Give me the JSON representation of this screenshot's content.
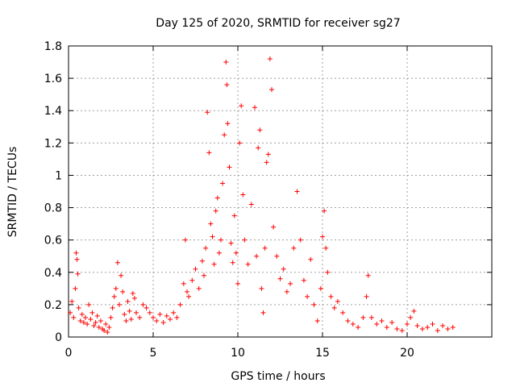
{
  "chart_data": {
    "type": "scatter",
    "title": "Day 125 of 2020, SRMTID for receiver sg27",
    "xlabel": "GPS time / hours",
    "ylabel": "SRMTID / TECUs",
    "xlim": [
      0,
      25
    ],
    "ylim": [
      0,
      1.8
    ],
    "xticks": [
      0,
      5,
      10,
      15,
      20
    ],
    "yticks": [
      0,
      0.2,
      0.4,
      0.6,
      0.8,
      1,
      1.2,
      1.4,
      1.6,
      1.8
    ],
    "xtick_labels": [
      "0",
      "5",
      "10",
      "15",
      "20"
    ],
    "ytick_labels": [
      "0",
      "0.2",
      "0.4",
      "0.6",
      "0.8",
      "1",
      "1.2",
      "1.4",
      "1.6",
      "1.8"
    ],
    "grid": true,
    "marker": "+",
    "marker_color": "#ff0000",
    "series": [
      {
        "name": "SRMTID",
        "points": [
          [
            0.1,
            0.15
          ],
          [
            0.2,
            0.22
          ],
          [
            0.3,
            0.12
          ],
          [
            0.4,
            0.3
          ],
          [
            0.45,
            0.52
          ],
          [
            0.5,
            0.48
          ],
          [
            0.55,
            0.39
          ],
          [
            0.6,
            0.18
          ],
          [
            0.7,
            0.1
          ],
          [
            0.8,
            0.14
          ],
          [
            0.9,
            0.09
          ],
          [
            1.0,
            0.12
          ],
          [
            1.1,
            0.08
          ],
          [
            1.2,
            0.2
          ],
          [
            1.3,
            0.11
          ],
          [
            1.4,
            0.15
          ],
          [
            1.5,
            0.07
          ],
          [
            1.6,
            0.09
          ],
          [
            1.7,
            0.13
          ],
          [
            1.8,
            0.06
          ],
          [
            1.9,
            0.1
          ],
          [
            2.0,
            0.05
          ],
          [
            2.1,
            0.04
          ],
          [
            2.2,
            0.08
          ],
          [
            2.3,
            0.03
          ],
          [
            2.4,
            0.06
          ],
          [
            2.5,
            0.12
          ],
          [
            2.6,
            0.18
          ],
          [
            2.7,
            0.25
          ],
          [
            2.8,
            0.3
          ],
          [
            2.9,
            0.46
          ],
          [
            3.0,
            0.2
          ],
          [
            3.1,
            0.38
          ],
          [
            3.2,
            0.28
          ],
          [
            3.3,
            0.14
          ],
          [
            3.4,
            0.1
          ],
          [
            3.5,
            0.22
          ],
          [
            3.6,
            0.16
          ],
          [
            3.7,
            0.11
          ],
          [
            3.8,
            0.27
          ],
          [
            3.9,
            0.24
          ],
          [
            4.0,
            0.15
          ],
          [
            4.2,
            0.12
          ],
          [
            4.4,
            0.2
          ],
          [
            4.6,
            0.18
          ],
          [
            4.8,
            0.15
          ],
          [
            5.0,
            0.12
          ],
          [
            5.2,
            0.1
          ],
          [
            5.4,
            0.14
          ],
          [
            5.6,
            0.09
          ],
          [
            5.8,
            0.13
          ],
          [
            6.0,
            0.11
          ],
          [
            6.2,
            0.15
          ],
          [
            6.4,
            0.12
          ],
          [
            6.6,
            0.2
          ],
          [
            6.8,
            0.33
          ],
          [
            6.9,
            0.6
          ],
          [
            7.0,
            0.28
          ],
          [
            7.1,
            0.25
          ],
          [
            7.3,
            0.35
          ],
          [
            7.5,
            0.42
          ],
          [
            7.7,
            0.3
          ],
          [
            7.9,
            0.47
          ],
          [
            8.0,
            0.38
          ],
          [
            8.1,
            0.55
          ],
          [
            8.2,
            1.39
          ],
          [
            8.3,
            1.14
          ],
          [
            8.4,
            0.7
          ],
          [
            8.5,
            0.62
          ],
          [
            8.6,
            0.45
          ],
          [
            8.7,
            0.78
          ],
          [
            8.8,
            0.86
          ],
          [
            8.9,
            0.52
          ],
          [
            9.0,
            0.6
          ],
          [
            9.1,
            0.95
          ],
          [
            9.2,
            1.25
          ],
          [
            9.3,
            1.7
          ],
          [
            9.35,
            1.56
          ],
          [
            9.4,
            1.32
          ],
          [
            9.5,
            1.05
          ],
          [
            9.6,
            0.58
          ],
          [
            9.7,
            0.46
          ],
          [
            9.8,
            0.75
          ],
          [
            9.9,
            0.52
          ],
          [
            10.0,
            0.33
          ],
          [
            10.1,
            1.2
          ],
          [
            10.2,
            1.43
          ],
          [
            10.3,
            0.88
          ],
          [
            10.4,
            0.6
          ],
          [
            10.6,
            0.45
          ],
          [
            10.8,
            0.82
          ],
          [
            11.0,
            1.42
          ],
          [
            11.1,
            0.5
          ],
          [
            11.2,
            1.17
          ],
          [
            11.3,
            1.28
          ],
          [
            11.4,
            0.3
          ],
          [
            11.5,
            0.15
          ],
          [
            11.6,
            0.55
          ],
          [
            11.7,
            1.08
          ],
          [
            11.8,
            1.13
          ],
          [
            11.9,
            1.72
          ],
          [
            12.0,
            1.53
          ],
          [
            12.1,
            0.68
          ],
          [
            12.3,
            0.5
          ],
          [
            12.5,
            0.36
          ],
          [
            12.7,
            0.42
          ],
          [
            12.9,
            0.28
          ],
          [
            13.1,
            0.33
          ],
          [
            13.3,
            0.55
          ],
          [
            13.5,
            0.9
          ],
          [
            13.7,
            0.6
          ],
          [
            13.9,
            0.35
          ],
          [
            14.1,
            0.25
          ],
          [
            14.3,
            0.48
          ],
          [
            14.5,
            0.2
          ],
          [
            14.7,
            0.1
          ],
          [
            14.9,
            0.3
          ],
          [
            15.0,
            0.62
          ],
          [
            15.1,
            0.78
          ],
          [
            15.2,
            0.55
          ],
          [
            15.3,
            0.4
          ],
          [
            15.5,
            0.25
          ],
          [
            15.7,
            0.18
          ],
          [
            15.9,
            0.22
          ],
          [
            16.2,
            0.15
          ],
          [
            16.5,
            0.1
          ],
          [
            16.8,
            0.08
          ],
          [
            17.1,
            0.06
          ],
          [
            17.4,
            0.12
          ],
          [
            17.6,
            0.25
          ],
          [
            17.7,
            0.38
          ],
          [
            17.9,
            0.12
          ],
          [
            18.2,
            0.08
          ],
          [
            18.5,
            0.1
          ],
          [
            18.8,
            0.06
          ],
          [
            19.1,
            0.09
          ],
          [
            19.4,
            0.05
          ],
          [
            19.7,
            0.04
          ],
          [
            20.0,
            0.08
          ],
          [
            20.2,
            0.12
          ],
          [
            20.4,
            0.16
          ],
          [
            20.6,
            0.07
          ],
          [
            20.9,
            0.05
          ],
          [
            21.2,
            0.06
          ],
          [
            21.5,
            0.08
          ],
          [
            21.8,
            0.04
          ],
          [
            22.1,
            0.07
          ],
          [
            22.4,
            0.05
          ],
          [
            22.7,
            0.06
          ]
        ]
      }
    ]
  }
}
